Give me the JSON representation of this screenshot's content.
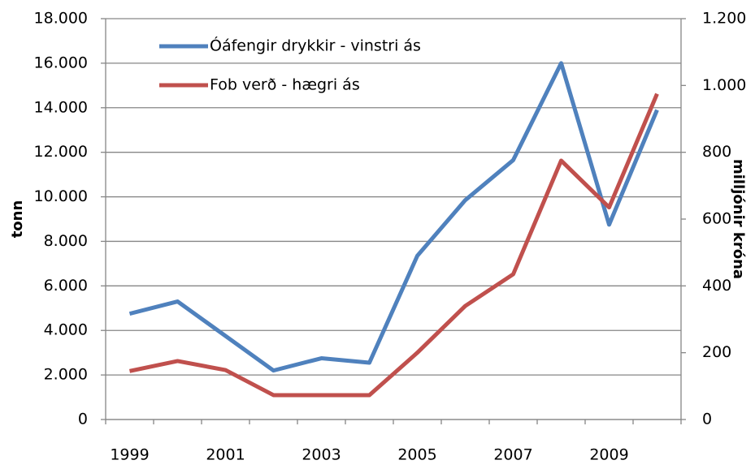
{
  "chart_data": {
    "type": "line",
    "categories": [
      "1999",
      null,
      "2001",
      null,
      "2003",
      null,
      "2005",
      null,
      "2007",
      null,
      "2009",
      null
    ],
    "y_label": "tonn",
    "y2_label": "milljónir króna",
    "series": [
      {
        "name": "Óáfengir drykkir - vinstri ás",
        "color": "#4f81bd",
        "values": [
          4750,
          5300,
          3750,
          2200,
          2750,
          2550,
          7350,
          9850,
          11650,
          16000,
          8750,
          13900
        ]
      },
      {
        "name": "Fob verð - hægri ás",
        "color": "#c0504d",
        "axis": "y2",
        "values": [
          145,
          175,
          148,
          73,
          73,
          73,
          200,
          340,
          435,
          775,
          635,
          975
        ]
      }
    ],
    "ylim": [
      0,
      18000
    ],
    "yticks": [
      0,
      {
        "value": 2000,
        "label": "2.000"
      },
      {
        "value": 4000,
        "label": "4.000"
      },
      {
        "value": 6000,
        "label": "6.000"
      },
      {
        "value": 8000,
        "label": "8.000"
      },
      {
        "value": 10000,
        "label": "10.000"
      },
      {
        "value": 12000,
        "label": "12.000"
      },
      {
        "value": 14000,
        "label": "14.000"
      },
      {
        "value": 16000,
        "label": "16.000"
      },
      {
        "value": 18000,
        "label": "18.000"
      }
    ],
    "y2lim": [
      0,
      1200
    ],
    "y2ticks": [
      0,
      200,
      400,
      600,
      800,
      {
        "value": 1000,
        "label": "1.000"
      },
      {
        "value": 1200,
        "label": "1.200"
      }
    ],
    "grid": true,
    "legend": "upper left"
  }
}
